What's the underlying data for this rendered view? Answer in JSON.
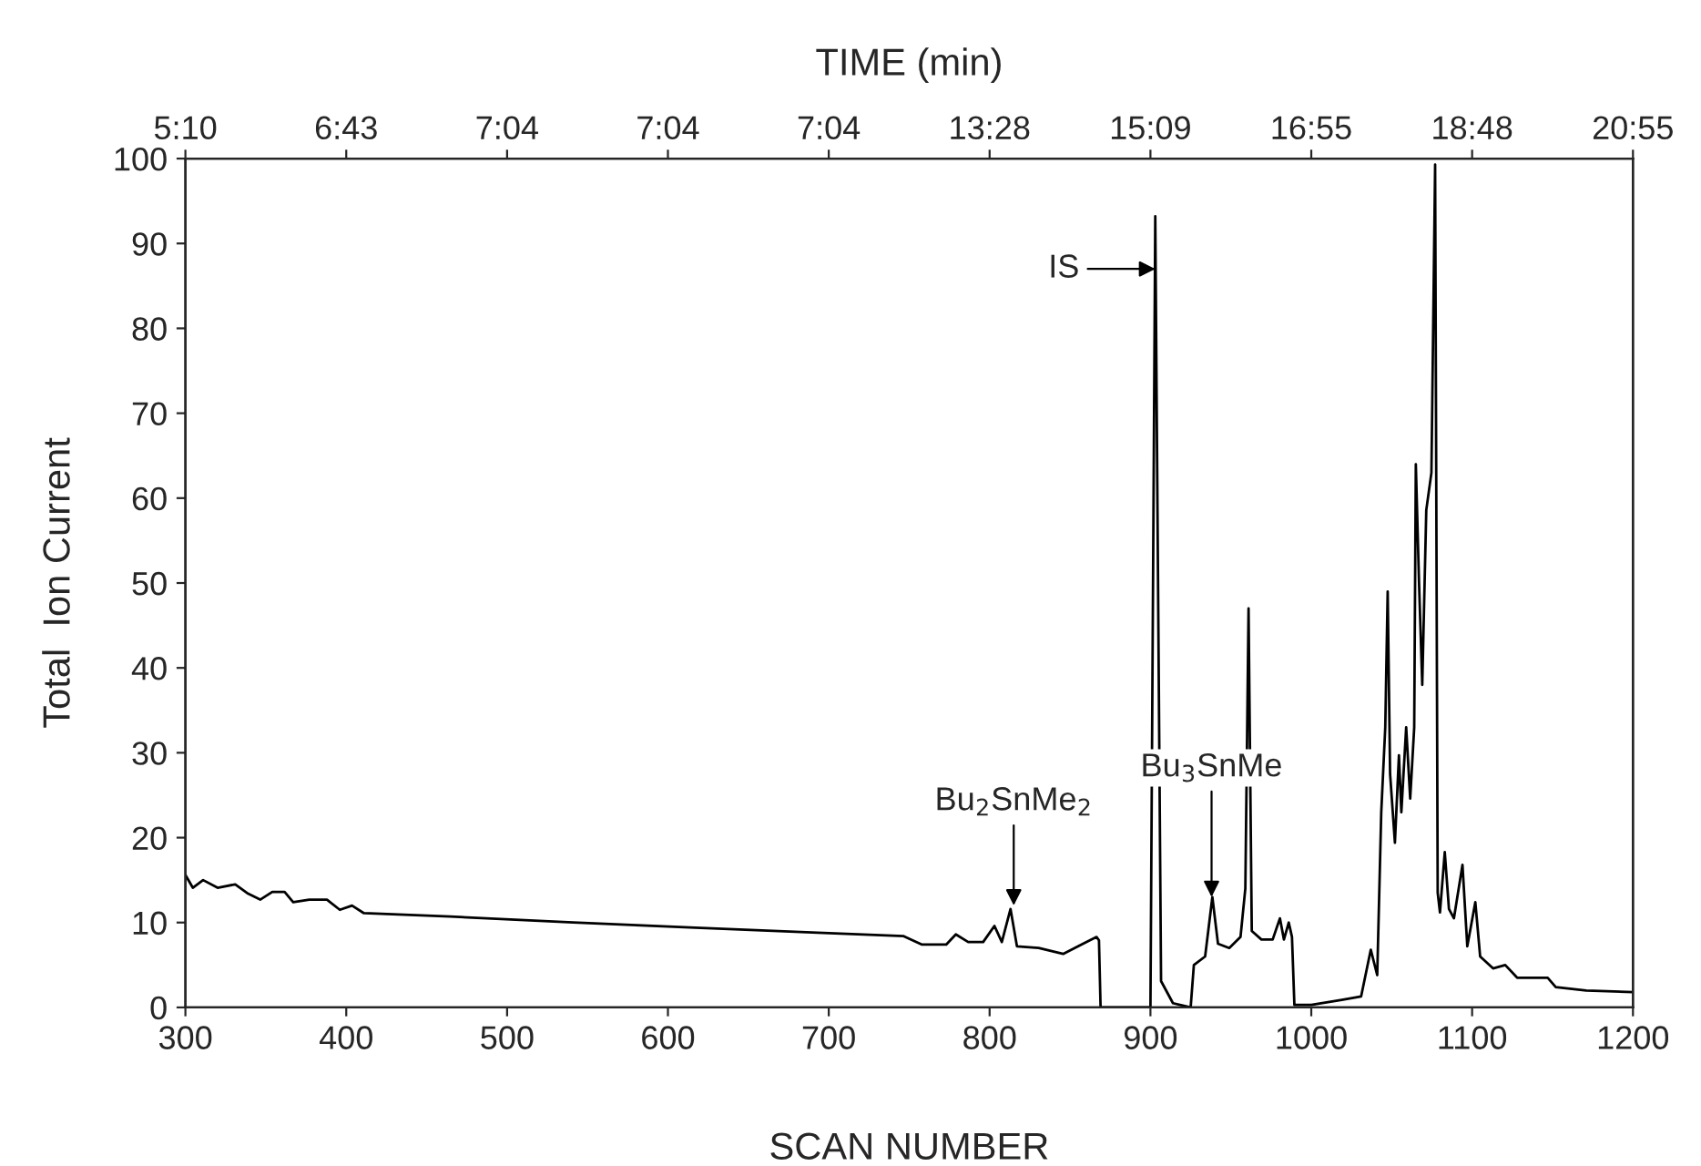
{
  "chart_data": {
    "type": "line",
    "xlabel": "SCAN NUMBER",
    "x2label": "TIME (min)",
    "ylabel": "Total  Ion Current",
    "x": [
      300,
      304.6,
      311,
      320,
      331,
      339,
      346.5,
      354,
      361.7,
      367,
      377,
      388,
      396,
      403.6,
      411,
      464.6,
      541,
      617,
      693,
      746.6,
      758,
      773,
      779,
      786.7,
      796,
      803,
      807.6,
      813,
      817,
      830.5,
      845.7,
      857,
      866.5,
      868,
      869,
      900,
      903,
      906.6,
      914,
      925,
      927,
      934,
      938.5,
      942,
      949,
      956,
      959,
      961,
      963,
      969,
      976,
      980.5,
      983,
      986,
      988,
      989.5,
      1000,
      1019,
      1031,
      1037,
      1041,
      1043.5,
      1046,
      1047.5,
      1049,
      1052,
      1054.5,
      1056,
      1059,
      1061.5,
      1064,
      1065,
      1067,
      1069,
      1071.5,
      1074.7,
      1077,
      1078.6,
      1080,
      1083,
      1085.6,
      1088.7,
      1094,
      1097,
      1102,
      1105,
      1113,
      1120.6,
      1128,
      1147,
      1152,
      1171,
      1200
    ],
    "series": [
      {
        "color": "#000000",
        "values": [
          15.6,
          14.1,
          15,
          14.1,
          14.5,
          13.4,
          12.7,
          13.6,
          13.6,
          12.4,
          12.7,
          12.7,
          11.5,
          12,
          11.1,
          10.7,
          10,
          9.4,
          8.8,
          8.4,
          7.4,
          7.4,
          8.6,
          7.7,
          7.7,
          9.6,
          7.7,
          11.6,
          7.2,
          7,
          6.3,
          7.4,
          8.3,
          7.9,
          0,
          0,
          93.2,
          3.1,
          0.5,
          0,
          5,
          6,
          13,
          7.5,
          7,
          8.3,
          14,
          47,
          9,
          8,
          8,
          10.5,
          8,
          10,
          8.3,
          0.3,
          0.3,
          0.9,
          1.3,
          6.8,
          3.8,
          23,
          33,
          49,
          27.5,
          19.4,
          29.7,
          23,
          33,
          24.6,
          33,
          64,
          50,
          38,
          58.6,
          63,
          99.3,
          13.5,
          11.2,
          18.3,
          11.6,
          10.5,
          16.8,
          7.2,
          12.4,
          6,
          4.6,
          5,
          3.5,
          3.5,
          2.4,
          2,
          1.8
        ]
      }
    ],
    "xlim": [
      300,
      1200
    ],
    "xticks": [
      300,
      400,
      500,
      600,
      700,
      800,
      900,
      1000,
      1100,
      1200
    ],
    "ylim": [
      0,
      100
    ],
    "yticks": [
      0,
      10,
      20,
      30,
      40,
      50,
      60,
      70,
      80,
      90,
      100
    ],
    "annotations": [
      {
        "text": "IS",
        "x": 903,
        "y": 87
      },
      {
        "text": "Bu$_{2}$SnMe$_{2}$",
        "x": 815,
        "y": 12
      },
      {
        "text": "Bu$_{3}$SnMe",
        "x": 938,
        "y": 13
      },
      "5:10",
      "6:43",
      "7:04",
      "7:04",
      "7:04",
      "13:28",
      "15:09",
      "16:55",
      "18:48",
      "20:55"
    ],
    "grid": false,
    "legend": false,
    "marker": "none",
    "line_style": "solid"
  }
}
